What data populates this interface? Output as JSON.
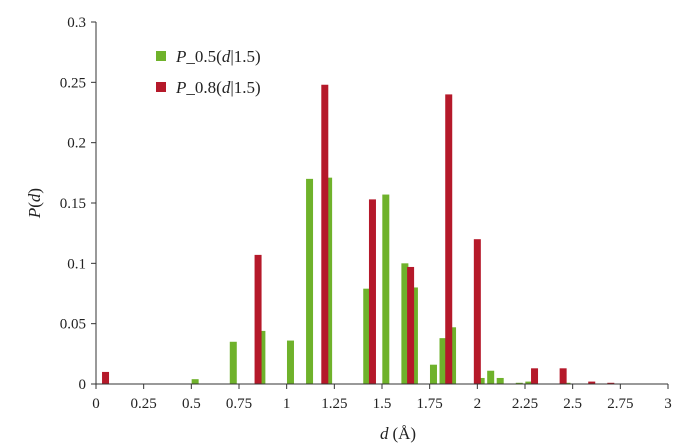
{
  "chart_data": {
    "type": "bar",
    "x_axis": {
      "label_var": "d",
      "label_unit": "(Å)",
      "range": [
        0,
        3
      ],
      "ticks": [
        "0",
        "0.25",
        "0.5",
        "0.75",
        "1",
        "1.25",
        "1.5",
        "1.75",
        "2",
        "2.25",
        "2.5",
        "2.75",
        "3"
      ]
    },
    "y_axis": {
      "label_p": "P",
      "label_open": "(",
      "label_var": "d",
      "label_close": ")",
      "range": [
        0,
        0.3
      ],
      "ticks": [
        "0",
        "0.05",
        "0.1",
        "0.15",
        "0.2",
        "0.25",
        "0.3"
      ]
    },
    "grid": false,
    "legend_position": "top-left",
    "series": [
      {
        "name": "P_0.5(d|1.5)",
        "legend_parts": [
          "P",
          "_0.5(",
          "d",
          "|1.5)"
        ],
        "color": "#6fb22b",
        "points": [
          {
            "x": 0.52,
            "y": 0.004
          },
          {
            "x": 0.72,
            "y": 0.035
          },
          {
            "x": 0.87,
            "y": 0.044
          },
          {
            "x": 1.02,
            "y": 0.036
          },
          {
            "x": 1.12,
            "y": 0.17
          },
          {
            "x": 1.22,
            "y": 0.171
          },
          {
            "x": 1.42,
            "y": 0.079
          },
          {
            "x": 1.52,
            "y": 0.157
          },
          {
            "x": 1.62,
            "y": 0.1
          },
          {
            "x": 1.67,
            "y": 0.08
          },
          {
            "x": 1.77,
            "y": 0.016
          },
          {
            "x": 1.82,
            "y": 0.038
          },
          {
            "x": 1.87,
            "y": 0.047
          },
          {
            "x": 2.02,
            "y": 0.005
          },
          {
            "x": 2.07,
            "y": 0.011
          },
          {
            "x": 2.12,
            "y": 0.005
          },
          {
            "x": 2.22,
            "y": 0.001
          },
          {
            "x": 2.27,
            "y": 0.002
          },
          {
            "x": 2.47,
            "y": 0.001
          }
        ]
      },
      {
        "name": "P_0.8(d|1.5)",
        "legend_parts": [
          "P",
          "_0.8(",
          "d",
          "|1.5)"
        ],
        "color": "#b5192a",
        "points": [
          {
            "x": 0.05,
            "y": 0.01
          },
          {
            "x": 0.85,
            "y": 0.107
          },
          {
            "x": 1.2,
            "y": 0.248
          },
          {
            "x": 1.45,
            "y": 0.153
          },
          {
            "x": 1.65,
            "y": 0.097
          },
          {
            "x": 1.85,
            "y": 0.24
          },
          {
            "x": 2.0,
            "y": 0.12
          },
          {
            "x": 2.3,
            "y": 0.013
          },
          {
            "x": 2.45,
            "y": 0.013
          },
          {
            "x": 2.6,
            "y": 0.002
          },
          {
            "x": 2.7,
            "y": 0.001
          }
        ]
      }
    ]
  }
}
